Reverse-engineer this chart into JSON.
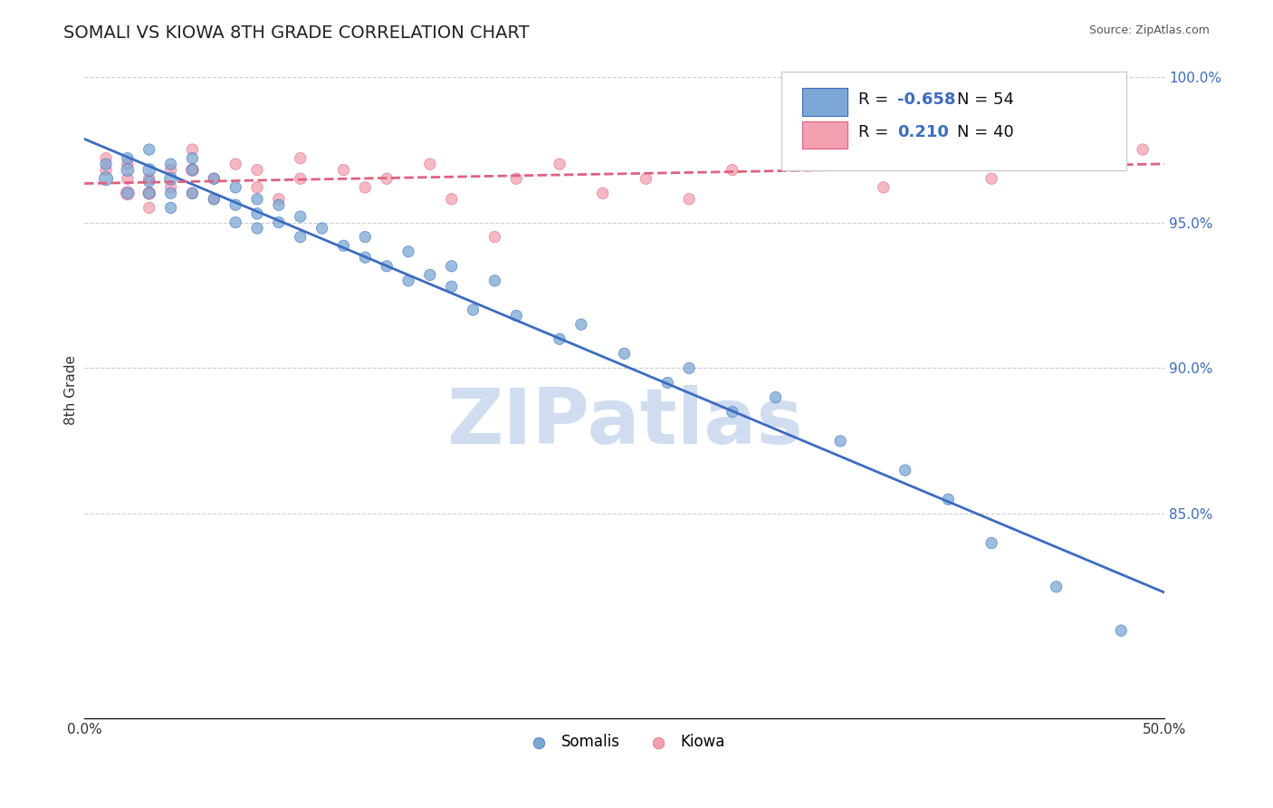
{
  "title": "SOMALI VS KIOWA 8TH GRADE CORRELATION CHART",
  "source_text": "Source: ZipAtlas.com",
  "xlabel": "",
  "ylabel": "8th Grade",
  "xlim": [
    0.0,
    0.5
  ],
  "ylim": [
    0.78,
    1.005
  ],
  "xticks": [
    0.0,
    0.05,
    0.1,
    0.15,
    0.2,
    0.25,
    0.3,
    0.35,
    0.4,
    0.45,
    0.5
  ],
  "xticklabels": [
    "0.0%",
    "",
    "",
    "",
    "",
    "",
    "",
    "",
    "",
    "",
    "50.0%"
  ],
  "yticks_right": [
    1.0,
    0.95,
    0.9,
    0.85
  ],
  "ytick_labels_right": [
    "100.0%",
    "95.0%",
    "90.0%",
    "85.0%"
  ],
  "grid_color": "#cccccc",
  "background_color": "#ffffff",
  "somali_color": "#7aa7d4",
  "kiowa_color": "#f4a0b0",
  "somali_R": -0.658,
  "somali_N": 54,
  "kiowa_R": 0.21,
  "kiowa_N": 40,
  "somali_line_color": "#3a6cc4",
  "kiowa_line_color": "#e06080",
  "watermark": "ZIPatlas",
  "watermark_color": "#d0ddf0",
  "somali_x": [
    0.01,
    0.01,
    0.02,
    0.02,
    0.02,
    0.03,
    0.03,
    0.03,
    0.03,
    0.04,
    0.04,
    0.04,
    0.04,
    0.05,
    0.05,
    0.05,
    0.06,
    0.06,
    0.07,
    0.07,
    0.07,
    0.08,
    0.08,
    0.08,
    0.09,
    0.09,
    0.1,
    0.1,
    0.11,
    0.12,
    0.13,
    0.13,
    0.14,
    0.15,
    0.15,
    0.16,
    0.17,
    0.17,
    0.18,
    0.19,
    0.2,
    0.22,
    0.23,
    0.25,
    0.27,
    0.28,
    0.3,
    0.32,
    0.35,
    0.38,
    0.4,
    0.42,
    0.45,
    0.48
  ],
  "somali_y": [
    0.97,
    0.965,
    0.972,
    0.968,
    0.96,
    0.975,
    0.968,
    0.964,
    0.96,
    0.97,
    0.965,
    0.96,
    0.955,
    0.972,
    0.968,
    0.96,
    0.965,
    0.958,
    0.962,
    0.956,
    0.95,
    0.958,
    0.953,
    0.948,
    0.956,
    0.95,
    0.952,
    0.945,
    0.948,
    0.942,
    0.945,
    0.938,
    0.935,
    0.94,
    0.93,
    0.932,
    0.928,
    0.935,
    0.92,
    0.93,
    0.918,
    0.91,
    0.915,
    0.905,
    0.895,
    0.9,
    0.885,
    0.89,
    0.875,
    0.865,
    0.855,
    0.84,
    0.825,
    0.81
  ],
  "somali_size": [
    80,
    120,
    80,
    100,
    80,
    80,
    100,
    80,
    80,
    80,
    100,
    80,
    80,
    80,
    80,
    80,
    80,
    80,
    80,
    80,
    80,
    80,
    80,
    80,
    80,
    80,
    80,
    80,
    80,
    80,
    80,
    80,
    80,
    80,
    80,
    80,
    80,
    80,
    80,
    80,
    80,
    80,
    80,
    80,
    80,
    80,
    80,
    80,
    80,
    80,
    80,
    80,
    80,
    80
  ],
  "kiowa_x": [
    0.01,
    0.01,
    0.02,
    0.02,
    0.02,
    0.03,
    0.03,
    0.03,
    0.04,
    0.04,
    0.05,
    0.05,
    0.05,
    0.06,
    0.06,
    0.07,
    0.08,
    0.08,
    0.09,
    0.1,
    0.1,
    0.12,
    0.13,
    0.14,
    0.16,
    0.17,
    0.19,
    0.2,
    0.22,
    0.24,
    0.26,
    0.28,
    0.3,
    0.35,
    0.37,
    0.4,
    0.42,
    0.45,
    0.47,
    0.49
  ],
  "kiowa_y": [
    0.972,
    0.968,
    0.97,
    0.965,
    0.96,
    0.965,
    0.96,
    0.955,
    0.968,
    0.962,
    0.975,
    0.968,
    0.96,
    0.965,
    0.958,
    0.97,
    0.968,
    0.962,
    0.958,
    0.972,
    0.965,
    0.968,
    0.962,
    0.965,
    0.97,
    0.958,
    0.945,
    0.965,
    0.97,
    0.96,
    0.965,
    0.958,
    0.968,
    0.972,
    0.962,
    0.978,
    0.965,
    0.978,
    0.97,
    0.975
  ],
  "kiowa_size": [
    80,
    80,
    80,
    80,
    120,
    80,
    100,
    80,
    80,
    80,
    80,
    100,
    80,
    80,
    80,
    80,
    80,
    80,
    80,
    80,
    80,
    80,
    80,
    80,
    80,
    80,
    80,
    80,
    80,
    80,
    80,
    80,
    80,
    80,
    80,
    80,
    80,
    80,
    80,
    80
  ]
}
